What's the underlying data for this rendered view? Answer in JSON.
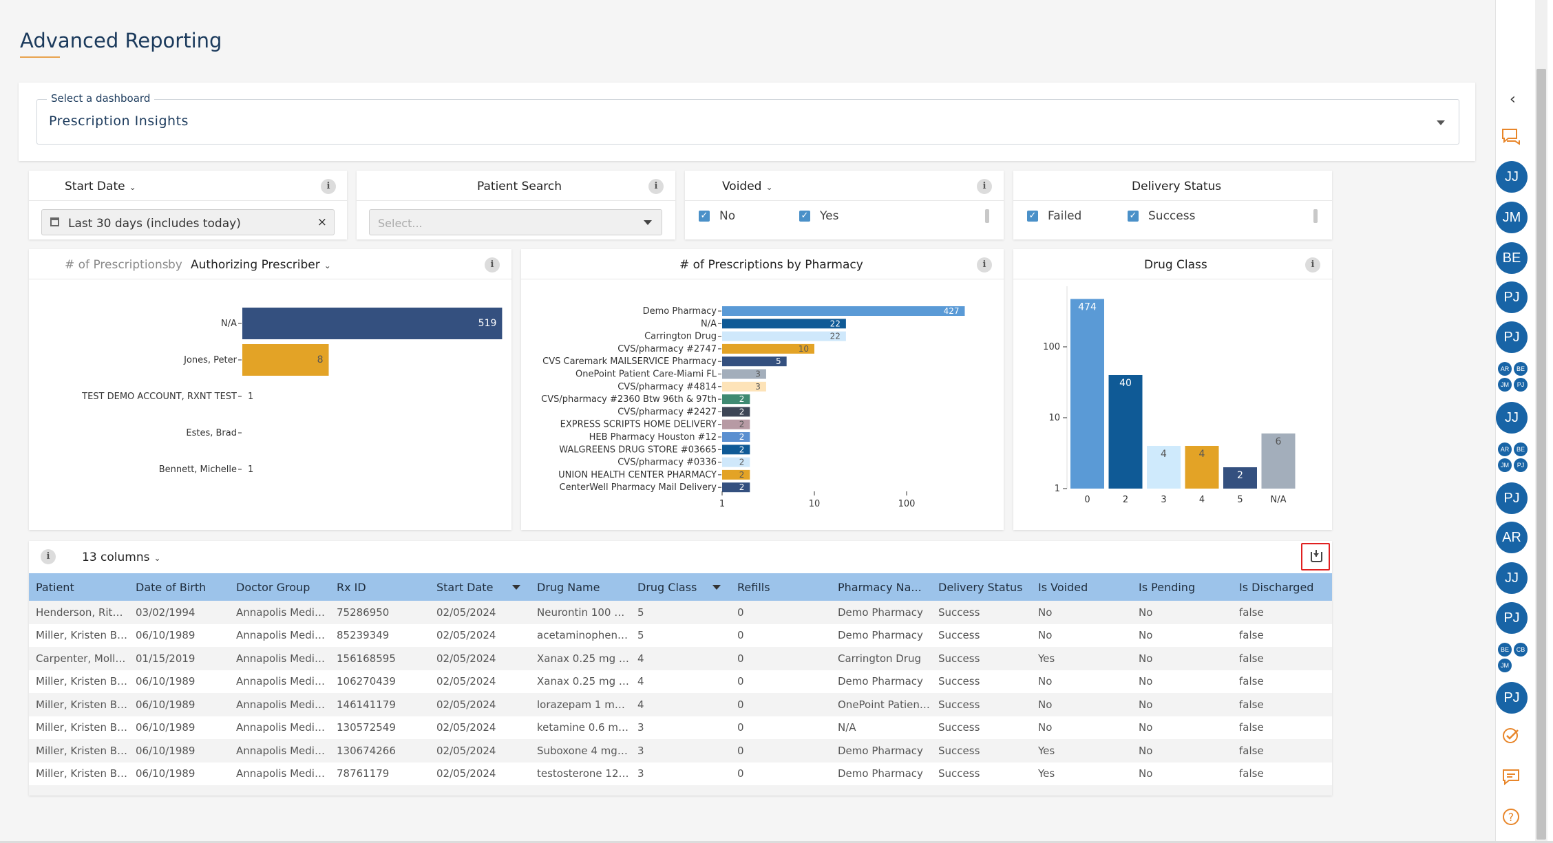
{
  "page": {
    "title": "Advanced Reporting"
  },
  "dashboard": {
    "label": "Select a dashboard",
    "value": "Prescription Insights"
  },
  "filters": {
    "start_date": {
      "title": "Start Date",
      "value": "Last 30 days (includes today)",
      "clear": "×"
    },
    "patient_search": {
      "title": "Patient Search",
      "placeholder": "Select..."
    },
    "voided": {
      "title": "Voided",
      "options": [
        "No",
        "Yes"
      ]
    },
    "delivery_status": {
      "title": "Delivery Status",
      "options": [
        "Failed",
        "Success"
      ]
    }
  },
  "chart_data": [
    {
      "type": "bar",
      "orientation": "horizontal",
      "title_metric": "# of Prescriptions",
      "title_by": "by",
      "title_group": "Authorizing Prescriber",
      "categories": [
        "N/A",
        "Jones, Peter",
        "TEST DEMO ACCOUNT, RXNT TEST",
        "Estes, Brad",
        "Bennett, Michelle"
      ],
      "values": [
        519,
        8,
        1,
        null,
        1
      ],
      "scale": "log",
      "ticks": [
        "1",
        "10",
        "100"
      ],
      "colors": [
        "#34507f",
        "#e3a326",
        "#34507f",
        "#34507f",
        "#34507f"
      ]
    },
    {
      "type": "bar",
      "orientation": "horizontal",
      "title": "# of Prescriptions by Pharmacy",
      "categories": [
        "Demo Pharmacy",
        "N/A",
        "Carrington Drug",
        "CVS/pharmacy #2747",
        "CVS Caremark MAILSERVICE Pharmacy",
        "OnePoint Patient Care-Miami FL",
        "CVS/pharmacy #4814",
        "CVS/pharmacy #2360 Btw 96th & 97th",
        "CVS/pharmacy #2427",
        "EXPRESS SCRIPTS HOME DELIVERY",
        "HEB Pharmacy Houston #12",
        "WALGREENS DRUG STORE #03665",
        "CVS/pharmacy #0336",
        "UNION HEALTH CENTER PHARMACY",
        "CenterWell Pharmacy Mail Delivery"
      ],
      "values": [
        427,
        22,
        22,
        10,
        5,
        3,
        3,
        2,
        2,
        2,
        2,
        2,
        2,
        2,
        2
      ],
      "scale": "log",
      "ticks": [
        "1",
        "10",
        "100"
      ],
      "colors": [
        "#5a9ad6",
        "#0f5a96",
        "#cfe8fb",
        "#e3a326",
        "#34507f",
        "#a3aebb",
        "#fde3b8",
        "#3f8a72",
        "#3d4656",
        "#b79aa4",
        "#5a8fd0",
        "#0f5a96",
        "#cfe8fb",
        "#e3a326",
        "#34507f"
      ]
    },
    {
      "type": "bar",
      "orientation": "vertical",
      "title": "Drug Class",
      "categories": [
        "0",
        "2",
        "3",
        "4",
        "5",
        "N/A"
      ],
      "values": [
        474,
        40,
        4,
        4,
        2,
        6
      ],
      "scale": "log",
      "ticks": [
        "1",
        "10",
        "100"
      ],
      "colors": [
        "#5a9ad6",
        "#0f5a96",
        "#cfeafc",
        "#e3a326",
        "#34507f",
        "#a3aebb"
      ]
    }
  ],
  "table": {
    "columns_button": "13 columns",
    "headers": [
      "Patient",
      "Date of Birth",
      "Doctor Group",
      "Rx ID",
      "Start Date",
      "Drug Name",
      "Drug Class",
      "Refills",
      "Pharmacy Na...",
      "Delivery Status",
      "Is Voided",
      "Is Pending",
      "Is Discharged"
    ],
    "rows": [
      [
        "Henderson, Rita :...",
        "03/02/1994",
        "Annapolis Medici...",
        "75286950",
        "02/05/2024",
        "Neurontin 100 m...",
        "5",
        "0",
        "Demo Pharmacy",
        "Success",
        "No",
        "No",
        "false"
      ],
      [
        "Miller, Kristen B: ...",
        "06/10/1989",
        "Annapolis Medici...",
        "85239349",
        "02/05/2024",
        "acetaminophen 1...",
        "5",
        "0",
        "Demo Pharmacy",
        "Success",
        "No",
        "No",
        "false"
      ],
      [
        "Carpenter, Molly :...",
        "01/15/2019",
        "Annapolis Medici...",
        "156168595",
        "02/05/2024",
        "Xanax 0.25 mg t...",
        "4",
        "0",
        "Carrington Drug",
        "Success",
        "Yes",
        "No",
        "false"
      ],
      [
        "Miller, Kristen B: ...",
        "06/10/1989",
        "Annapolis Medici...",
        "106270439",
        "02/05/2024",
        "Xanax 0.25 mg t...",
        "4",
        "0",
        "Demo Pharmacy",
        "Success",
        "No",
        "No",
        "false"
      ],
      [
        "Miller, Kristen B: ...",
        "06/10/1989",
        "Annapolis Medici...",
        "146141179",
        "02/05/2024",
        "lorazepam 1 mg/...",
        "4",
        "0",
        "OnePoint Patient...",
        "Success",
        "No",
        "No",
        "false"
      ],
      [
        "Miller, Kristen B: ...",
        "06/10/1989",
        "Annapolis Medici...",
        "130572549",
        "02/05/2024",
        "ketamine 0.6 mg/...",
        "3",
        "0",
        "N/A",
        "Success",
        "No",
        "No",
        "false"
      ],
      [
        "Miller, Kristen B: ...",
        "06/10/1989",
        "Annapolis Medici...",
        "130674266",
        "02/05/2024",
        "Suboxone 4 mg-...",
        "3",
        "0",
        "Demo Pharmacy",
        "Success",
        "Yes",
        "No",
        "false"
      ],
      [
        "Miller, Kristen B: ...",
        "06/10/1989",
        "Annapolis Medici...",
        "78761179",
        "02/05/2024",
        "testosterone 12.5...",
        "3",
        "0",
        "Demo Pharmacy",
        "Success",
        "Yes",
        "No",
        "false"
      ]
    ]
  },
  "rail": {
    "avatars": [
      "JJ",
      "JM",
      "BE",
      "PJ",
      "PJ",
      "JJ",
      "PJ",
      "AR",
      "JJ",
      "PJ",
      "PJ"
    ],
    "groups": [
      [
        "AR",
        "BE",
        "JM",
        "PJ"
      ],
      [
        "AR",
        "BE",
        "JM",
        "PJ"
      ],
      [
        "BE",
        "CB",
        "JM"
      ]
    ],
    "accent": "#e8862a",
    "avatar_color": "#1864a6"
  }
}
